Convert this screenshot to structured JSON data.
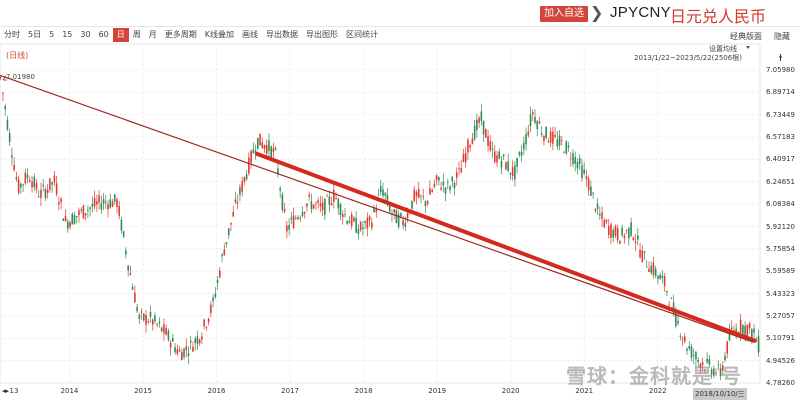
{
  "header": {
    "add_button": "加入自选",
    "chevron": "❯",
    "symbol": "JPYCNY",
    "name": "日元兑人民币"
  },
  "toolbar": {
    "items": [
      "分时",
      "5日",
      "5",
      "15",
      "30",
      "60",
      "日",
      "周",
      "月",
      "更多周期",
      "K线叠加",
      "画线",
      "导出数据",
      "导出图形",
      "区间统计"
    ],
    "active": "日",
    "classic_label": "经典版面",
    "hide_label": "隐藏"
  },
  "chart_meta": {
    "period_label": "(日线)",
    "ma_setting": "设置均线",
    "range_label": "2013/1/22~2023/5/22(2506根)",
    "max_label": "7.01980",
    "crosshair_label": "2018/10/10/三",
    "left_arrows": "◂▸",
    "watermark": "雪球：金科就是 号"
  },
  "chart_data": {
    "type": "candlestick",
    "x_label_start": "13",
    "x_ticks": [
      {
        "label": "2014",
        "value": 2014.0
      },
      {
        "label": "2015",
        "value": 2015.0
      },
      {
        "label": "2016",
        "value": 2016.0
      },
      {
        "label": "2017",
        "value": 2017.0
      },
      {
        "label": "2018",
        "value": 2018.0
      },
      {
        "label": "2019",
        "value": 2019.0
      },
      {
        "label": "2020",
        "value": 2020.0
      },
      {
        "label": "2021",
        "value": 2021.0
      },
      {
        "label": "2022",
        "value": 2022.0
      }
    ],
    "y_ticks": [
      "7.05980",
      "6.89714",
      "6.73449",
      "6.57183",
      "6.40917",
      "6.24651",
      "6.08384",
      "5.92120",
      "5.75854",
      "5.59589",
      "5.43323",
      "5.27057",
      "5.10791",
      "4.94526",
      "4.78260"
    ],
    "ylim": [
      4.7826,
      7.0598
    ],
    "xlim": [
      2013.055,
      2023.39
    ],
    "series": [
      {
        "date": 2013.06,
        "value": 7.02
      },
      {
        "date": 2013.15,
        "value": 6.7
      },
      {
        "date": 2013.3,
        "value": 6.2
      },
      {
        "date": 2013.45,
        "value": 6.3
      },
      {
        "date": 2013.6,
        "value": 6.15
      },
      {
        "date": 2013.8,
        "value": 6.25
      },
      {
        "date": 2013.95,
        "value": 5.95
      },
      {
        "date": 2014.1,
        "value": 6.0
      },
      {
        "date": 2014.25,
        "value": 6.05
      },
      {
        "date": 2014.45,
        "value": 6.1
      },
      {
        "date": 2014.65,
        "value": 6.1
      },
      {
        "date": 2014.8,
        "value": 5.65
      },
      {
        "date": 2014.95,
        "value": 5.25
      },
      {
        "date": 2015.1,
        "value": 5.25
      },
      {
        "date": 2015.3,
        "value": 5.15
      },
      {
        "date": 2015.5,
        "value": 5.0
      },
      {
        "date": 2015.65,
        "value": 5.05
      },
      {
        "date": 2015.8,
        "value": 5.15
      },
      {
        "date": 2015.95,
        "value": 5.35
      },
      {
        "date": 2016.1,
        "value": 5.75
      },
      {
        "date": 2016.25,
        "value": 6.05
      },
      {
        "date": 2016.4,
        "value": 6.3
      },
      {
        "date": 2016.55,
        "value": 6.55
      },
      {
        "date": 2016.7,
        "value": 6.5
      },
      {
        "date": 2016.8,
        "value": 6.45
      },
      {
        "date": 2016.95,
        "value": 5.9
      },
      {
        "date": 2017.1,
        "value": 6.0
      },
      {
        "date": 2017.25,
        "value": 6.1
      },
      {
        "date": 2017.45,
        "value": 6.05
      },
      {
        "date": 2017.6,
        "value": 6.15
      },
      {
        "date": 2017.75,
        "value": 6.0
      },
      {
        "date": 2017.95,
        "value": 5.9
      },
      {
        "date": 2018.1,
        "value": 5.95
      },
      {
        "date": 2018.25,
        "value": 6.2
      },
      {
        "date": 2018.4,
        "value": 6.0
      },
      {
        "date": 2018.55,
        "value": 5.95
      },
      {
        "date": 2018.7,
        "value": 6.15
      },
      {
        "date": 2018.85,
        "value": 6.1
      },
      {
        "date": 2019.0,
        "value": 6.25
      },
      {
        "date": 2019.15,
        "value": 6.2
      },
      {
        "date": 2019.3,
        "value": 6.3
      },
      {
        "date": 2019.45,
        "value": 6.55
      },
      {
        "date": 2019.6,
        "value": 6.7
      },
      {
        "date": 2019.75,
        "value": 6.45
      },
      {
        "date": 2019.9,
        "value": 6.4
      },
      {
        "date": 2020.05,
        "value": 6.3
      },
      {
        "date": 2020.2,
        "value": 6.55
      },
      {
        "date": 2020.3,
        "value": 6.75
      },
      {
        "date": 2020.45,
        "value": 6.6
      },
      {
        "date": 2020.6,
        "value": 6.55
      },
      {
        "date": 2020.75,
        "value": 6.5
      },
      {
        "date": 2020.9,
        "value": 6.4
      },
      {
        "date": 2021.05,
        "value": 6.25
      },
      {
        "date": 2021.2,
        "value": 6.0
      },
      {
        "date": 2021.35,
        "value": 5.9
      },
      {
        "date": 2021.5,
        "value": 5.85
      },
      {
        "date": 2021.65,
        "value": 5.9
      },
      {
        "date": 2021.8,
        "value": 5.7
      },
      {
        "date": 2021.95,
        "value": 5.6
      },
      {
        "date": 2022.1,
        "value": 5.5
      },
      {
        "date": 2022.25,
        "value": 5.25
      },
      {
        "date": 2022.4,
        "value": 5.05
      },
      {
        "date": 2022.55,
        "value": 4.95
      },
      {
        "date": 2022.7,
        "value": 4.9
      },
      {
        "date": 2022.85,
        "value": 4.85
      },
      {
        "date": 2023.0,
        "value": 5.15
      },
      {
        "date": 2023.15,
        "value": 5.2
      },
      {
        "date": 2023.3,
        "value": 5.15
      },
      {
        "date": 2023.38,
        "value": 5.05
      }
    ],
    "trendlines": [
      {
        "color": "#9b2a22",
        "from": [
          2013.06,
          7.02
        ],
        "to": [
          2023.3,
          5.08
        ]
      },
      {
        "color": "#d42a1e",
        "from": [
          2016.55,
          6.45
        ],
        "to": [
          2023.32,
          5.09
        ]
      }
    ],
    "colors": {
      "up": "#e03a2f",
      "down": "#2e8b57",
      "grid": "#ececec",
      "accent": "#d24538"
    }
  }
}
